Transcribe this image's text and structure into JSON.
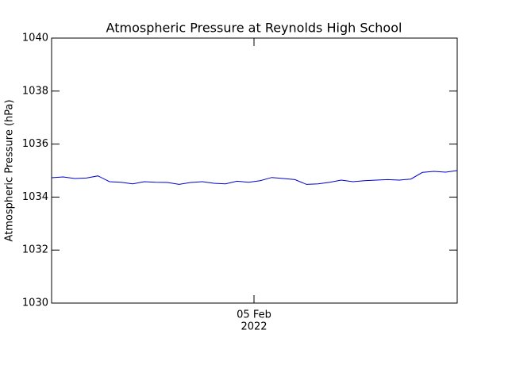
{
  "chart_data": {
    "type": "line",
    "title": "Atmospheric Pressure at Reynolds High School",
    "y_label": "Atmospheric Pressure (hPa)",
    "xtick_label": [
      "05 Feb",
      "2022"
    ],
    "ylim": [
      1030,
      1040
    ],
    "yticks": [
      1030,
      1032,
      1034,
      1036,
      1038,
      1040
    ],
    "grid": false,
    "series": [
      {
        "name": "Atmospheric Pressure",
        "color": "#0000cc",
        "values": [
          1034.73,
          1034.76,
          1034.7,
          1034.72,
          1034.8,
          1034.58,
          1034.56,
          1034.5,
          1034.58,
          1034.56,
          1034.55,
          1034.48,
          1034.55,
          1034.58,
          1034.52,
          1034.5,
          1034.6,
          1034.56,
          1034.62,
          1034.74,
          1034.7,
          1034.66,
          1034.48,
          1034.5,
          1034.56,
          1034.64,
          1034.58,
          1034.62,
          1034.64,
          1034.66,
          1034.64,
          1034.68,
          1034.93,
          1034.97,
          1034.94,
          1035.0
        ]
      }
    ]
  }
}
